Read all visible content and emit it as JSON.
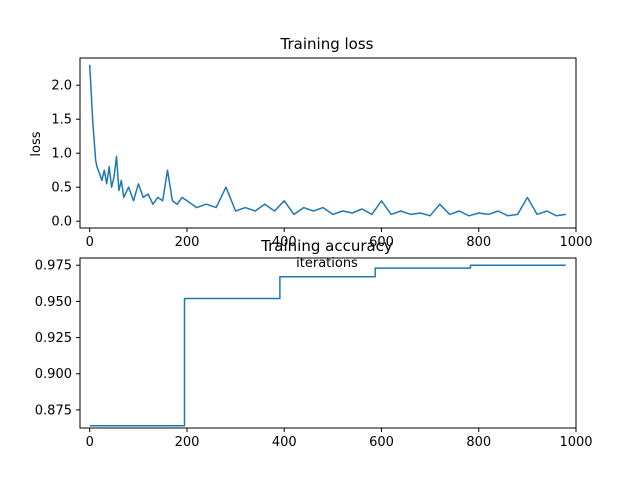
{
  "chart_data": [
    {
      "type": "line",
      "title": "Training loss",
      "xlabel": "iterations",
      "ylabel": "loss",
      "xlim": [
        -20,
        1000
      ],
      "ylim": [
        -0.1,
        2.4
      ],
      "xticks": [
        0,
        200,
        400,
        600,
        800,
        1000
      ],
      "yticks": [
        0.0,
        0.5,
        1.0,
        1.5,
        2.0
      ],
      "ytick_labels": [
        "0.0",
        "0.5",
        "1.0",
        "1.5",
        "2.0"
      ],
      "grid": false,
      "series": [
        {
          "color": "#1f77b4",
          "x": [
            0,
            3,
            6,
            9,
            12,
            15,
            20,
            25,
            30,
            35,
            40,
            45,
            50,
            55,
            60,
            65,
            70,
            80,
            90,
            100,
            110,
            120,
            130,
            140,
            150,
            160,
            170,
            180,
            190,
            200,
            220,
            240,
            260,
            280,
            300,
            320,
            340,
            360,
            380,
            400,
            420,
            440,
            460,
            480,
            500,
            520,
            540,
            560,
            580,
            600,
            620,
            640,
            660,
            680,
            700,
            720,
            740,
            760,
            780,
            800,
            820,
            840,
            860,
            880,
            900,
            920,
            940,
            960,
            979
          ],
          "y": [
            2.3,
            1.9,
            1.5,
            1.2,
            0.9,
            0.8,
            0.7,
            0.6,
            0.75,
            0.55,
            0.8,
            0.5,
            0.65,
            0.95,
            0.45,
            0.6,
            0.35,
            0.5,
            0.3,
            0.55,
            0.35,
            0.4,
            0.25,
            0.35,
            0.3,
            0.75,
            0.3,
            0.25,
            0.35,
            0.3,
            0.2,
            0.25,
            0.2,
            0.5,
            0.15,
            0.2,
            0.15,
            0.25,
            0.15,
            0.3,
            0.1,
            0.2,
            0.15,
            0.2,
            0.1,
            0.15,
            0.12,
            0.18,
            0.1,
            0.3,
            0.1,
            0.15,
            0.1,
            0.12,
            0.08,
            0.25,
            0.1,
            0.15,
            0.08,
            0.12,
            0.1,
            0.15,
            0.08,
            0.1,
            0.35,
            0.1,
            0.15,
            0.08,
            0.1
          ]
        }
      ]
    },
    {
      "type": "line",
      "title": "Training accuracy",
      "xlabel": "",
      "ylabel": "",
      "xlim": [
        -20,
        1000
      ],
      "ylim": [
        0.8625,
        0.98
      ],
      "xticks": [
        0,
        200,
        400,
        600,
        800,
        1000
      ],
      "yticks": [
        0.875,
        0.9,
        0.925,
        0.95,
        0.975
      ],
      "ytick_labels": [
        "0.875",
        "0.900",
        "0.925",
        "0.950",
        "0.975"
      ],
      "grid": false,
      "series": [
        {
          "color": "#1f77b4",
          "x": [
            0,
            195,
            195,
            391,
            391,
            587,
            587,
            783,
            783,
            979
          ],
          "y": [
            0.864,
            0.864,
            0.952,
            0.952,
            0.967,
            0.967,
            0.973,
            0.973,
            0.975,
            0.975
          ]
        }
      ]
    }
  ]
}
